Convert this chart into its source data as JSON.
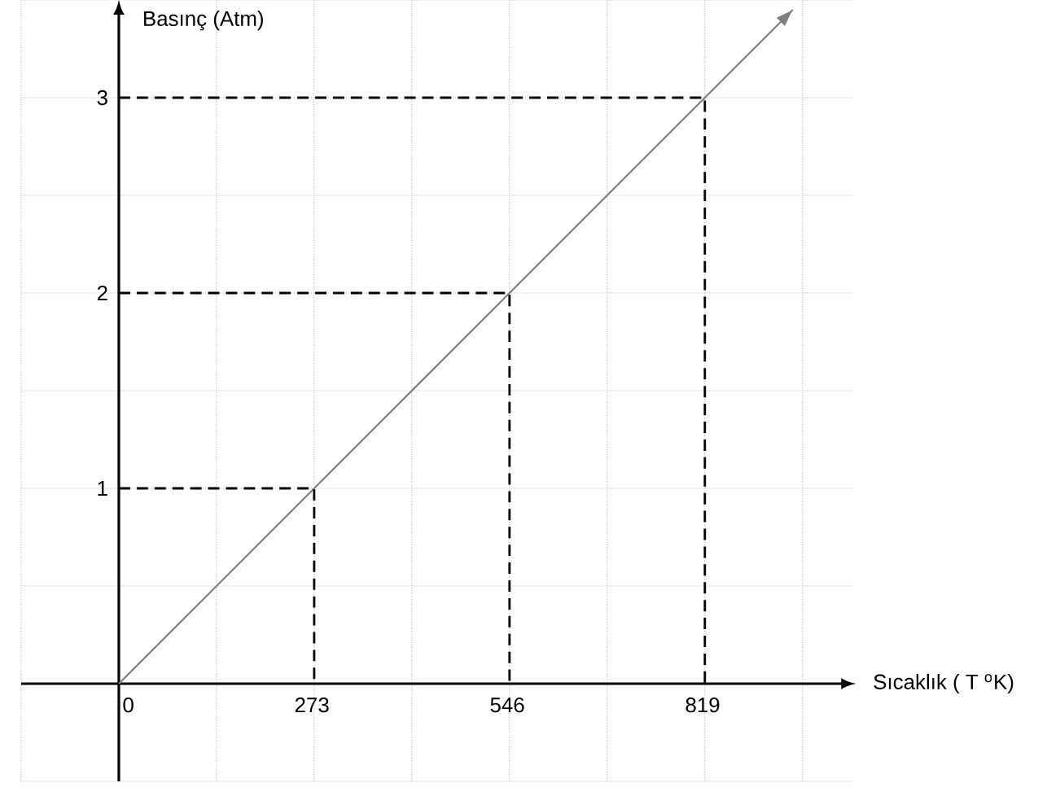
{
  "chart_data": {
    "type": "line",
    "xlabel": "Sıcaklık ( T $^{o}$K)",
    "ylabel": "Basınç  (Atm)",
    "xlim": [
      -136.5,
      1030
    ],
    "ylim": [
      -0.5,
      3.5
    ],
    "xticks": [
      {
        "value": -136.5,
        "label": null
      },
      0,
      {
        "value": 136.5,
        "label": null
      },
      273,
      {
        "value": 409.5,
        "label": null
      },
      546,
      {
        "value": 682.5,
        "label": null
      },
      819,
      {
        "value": 955.5,
        "label": null
      }
    ],
    "yticks": [
      {
        "value": -0.5,
        "label": null
      },
      {
        "value": 0,
        "label": null
      },
      {
        "value": 0.5,
        "label": null
      },
      1,
      {
        "value": 1.5,
        "label": null
      },
      2,
      {
        "value": 2.5,
        "label": null
      },
      3,
      {
        "value": 3.5,
        "label": null
      }
    ],
    "grid": true,
    "marker": "none",
    "series": [
      {
        "color": "#808080",
        "line_style": "solid",
        "x": [
          0,
          273,
          546,
          819,
          942
        ],
        "values": [
          0,
          1,
          2,
          3,
          3.45
        ]
      },
      {
        "color": "#000000",
        "line_style": "dashed",
        "x": [
          0,
          273,
          273
        ],
        "values": [
          1,
          1,
          0
        ]
      },
      {
        "color": "#000000",
        "line_style": "dashed",
        "x": [
          0,
          546,
          546
        ],
        "values": [
          2,
          2,
          0
        ]
      },
      {
        "color": "#000000",
        "line_style": "dashed",
        "x": [
          0,
          819,
          819
        ],
        "values": [
          3,
          3,
          0
        ]
      }
    ]
  }
}
